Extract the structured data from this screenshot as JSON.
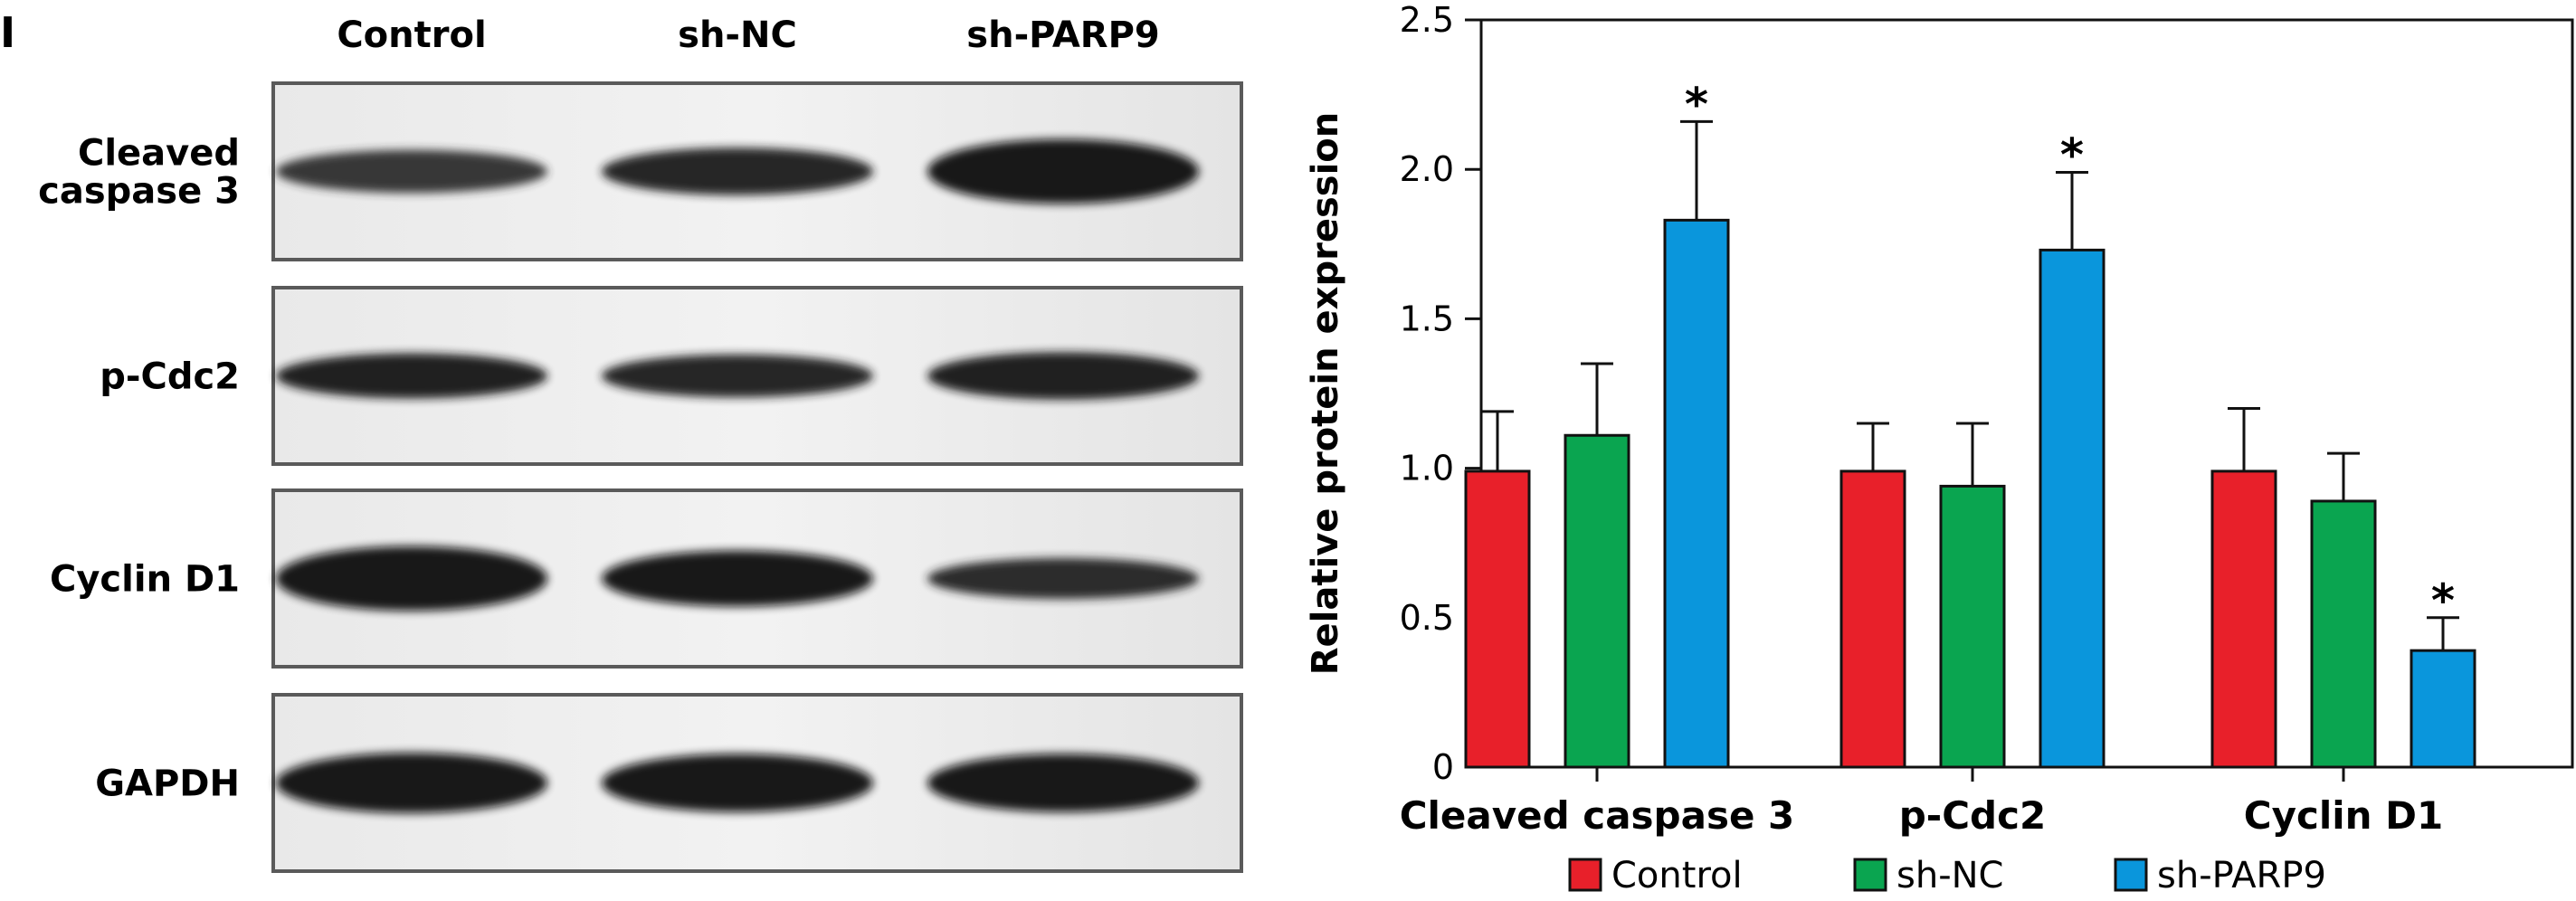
{
  "figure": {
    "panel_letter": "I"
  },
  "blot": {
    "lane_labels": [
      "Control",
      "sh-NC",
      "sh-PARP9"
    ],
    "rows": [
      {
        "label_lines": [
          "Cleaved",
          "caspase 3"
        ],
        "band_intensity": [
          0.55,
          0.75,
          1.0
        ],
        "band_thickness": [
          0.45,
          0.55,
          0.95
        ]
      },
      {
        "label_lines": [
          "p-Cdc2"
        ],
        "band_intensity": [
          0.85,
          0.8,
          0.9
        ],
        "band_thickness": [
          0.5,
          0.45,
          0.55
        ]
      },
      {
        "label_lines": [
          "Cyclin D1"
        ],
        "band_intensity": [
          1.0,
          0.95,
          0.7
        ],
        "band_thickness": [
          0.95,
          0.75,
          0.4
        ]
      },
      {
        "label_lines": [
          "GAPDH"
        ],
        "band_intensity": [
          1.0,
          1.0,
          1.0
        ],
        "band_thickness": [
          0.85,
          0.8,
          0.8
        ]
      }
    ]
  },
  "chart_data": {
    "type": "bar",
    "categories": [
      "Cleaved caspase 3",
      "p-Cdc2",
      "Cyclin D1"
    ],
    "series": [
      {
        "name": "Control",
        "color": "#e8202a",
        "values": [
          0.99,
          0.99,
          0.99
        ],
        "errors": [
          0.2,
          0.16,
          0.21
        ]
      },
      {
        "name": "sh-NC",
        "color": "#0aa550",
        "values": [
          1.11,
          0.94,
          0.89
        ],
        "errors": [
          0.24,
          0.21,
          0.16
        ]
      },
      {
        "name": "sh-PARP9",
        "color": "#0a96dc",
        "values": [
          1.83,
          1.73,
          0.39
        ],
        "errors": [
          0.33,
          0.26,
          0.11
        ]
      }
    ],
    "significance": [
      {
        "category": 0,
        "series": 2,
        "label": "*"
      },
      {
        "category": 1,
        "series": 2,
        "label": "*"
      },
      {
        "category": 2,
        "series": 2,
        "label": "*"
      }
    ],
    "ylabel": "Relative protein expression",
    "ylim": [
      0,
      2.5
    ],
    "yticks": [
      0,
      0.5,
      1.0,
      1.5,
      2.0,
      2.5
    ],
    "ytick_labels": [
      "0",
      "0.5",
      "1.0",
      "1.5",
      "2.0",
      "2.5"
    ],
    "grid": false,
    "legend_position": "bottom"
  }
}
